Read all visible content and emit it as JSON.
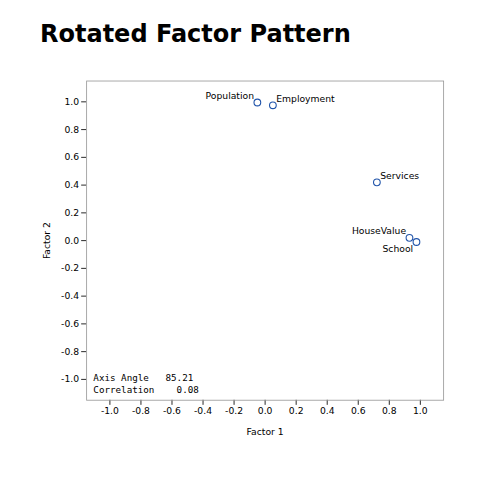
{
  "chart_data": {
    "type": "scatter",
    "title": "Rotated Factor Pattern",
    "xlabel": "Factor 1",
    "ylabel": "Factor 2",
    "x": [
      -0.05,
      0.05,
      0.72,
      0.93,
      0.975
    ],
    "values": [
      0.995,
      0.975,
      0.42,
      0.02,
      -0.01
    ],
    "labels": [
      "Population",
      "Employment",
      "Services",
      "HouseValue",
      "School"
    ],
    "color": "#2255aa",
    "marker": "circle",
    "xlim": [
      -1.15,
      1.15
    ],
    "ylim": [
      -1.15,
      1.15
    ],
    "xticks": [
      {
        "value": -1.0,
        "label": "-1.0"
      },
      -0.8,
      -0.6,
      -0.4,
      -0.2,
      {
        "value": 0.0,
        "label": "0.0"
      },
      0.2,
      0.4,
      0.6,
      0.8,
      {
        "value": 1.0,
        "label": "1.0"
      }
    ],
    "yticks": [
      {
        "value": -1.0,
        "label": "-1.0"
      },
      -0.8,
      -0.6,
      -0.4,
      -0.2,
      {
        "value": 0.0,
        "label": "0.0"
      },
      0.2,
      0.4,
      0.6,
      0.8,
      {
        "value": 1.0,
        "label": "1.0"
      }
    ],
    "grid": false,
    "annotations": [
      "Axis Angle   85.21",
      "Correlation    0.08"
    ]
  }
}
